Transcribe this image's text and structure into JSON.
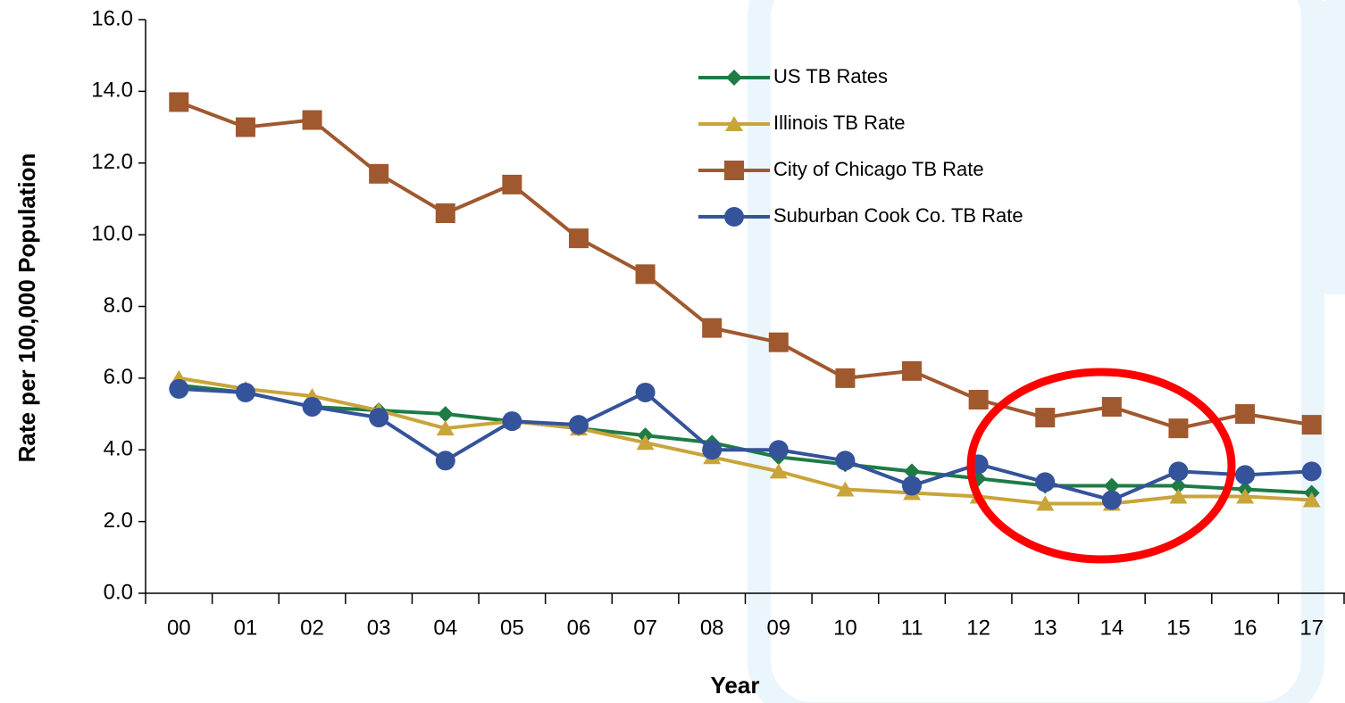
{
  "chart_data": {
    "type": "line",
    "xlabel": "Year",
    "ylabel": "Rate per 100,000 Population",
    "categories": [
      "00",
      "01",
      "02",
      "03",
      "04",
      "05",
      "06",
      "07",
      "08",
      "09",
      "10",
      "11",
      "12",
      "13",
      "14",
      "15",
      "16",
      "17"
    ],
    "series": [
      {
        "name": "US TB Rates",
        "color": "#1e7b45",
        "marker": "diamond",
        "values": [
          5.8,
          5.6,
          5.2,
          5.1,
          5.0,
          4.8,
          4.6,
          4.4,
          4.2,
          3.8,
          3.6,
          3.4,
          3.2,
          3.0,
          3.0,
          3.0,
          2.9,
          2.8
        ]
      },
      {
        "name": "Illinois TB Rate",
        "color": "#c9a43a",
        "marker": "triangle",
        "values": [
          6.0,
          5.7,
          5.5,
          5.1,
          4.6,
          4.8,
          4.6,
          4.2,
          3.8,
          3.4,
          2.9,
          2.8,
          2.7,
          2.5,
          2.5,
          2.7,
          2.7,
          2.6
        ]
      },
      {
        "name": "City of Chicago TB Rate",
        "color": "#a0582e",
        "marker": "square",
        "values": [
          13.7,
          13.0,
          13.2,
          11.7,
          10.6,
          11.4,
          9.9,
          8.9,
          7.4,
          7.0,
          6.0,
          6.2,
          5.4,
          4.9,
          5.2,
          4.6,
          5.0,
          4.7
        ]
      },
      {
        "name": "Suburban Cook Co. TB Rate",
        "color": "#34539a",
        "marker": "circle",
        "values": [
          5.7,
          5.6,
          5.2,
          4.9,
          3.7,
          4.8,
          4.7,
          5.6,
          4.0,
          4.0,
          3.7,
          3.0,
          3.6,
          3.1,
          2.6,
          3.4,
          3.3,
          3.4
        ]
      }
    ],
    "ylim": [
      0,
      16
    ],
    "yticks": [
      {
        "value": 0,
        "label": "0.0"
      },
      {
        "value": 2,
        "label": "2.0"
      },
      {
        "value": 4,
        "label": "4.0"
      },
      {
        "value": 6,
        "label": "6.0"
      },
      {
        "value": 8,
        "label": "8.0"
      },
      {
        "value": 10,
        "label": "10.0"
      },
      {
        "value": 12,
        "label": "12.0"
      },
      {
        "value": 14,
        "label": "14.0"
      },
      {
        "value": 16,
        "label": "16.0"
      }
    ]
  }
}
